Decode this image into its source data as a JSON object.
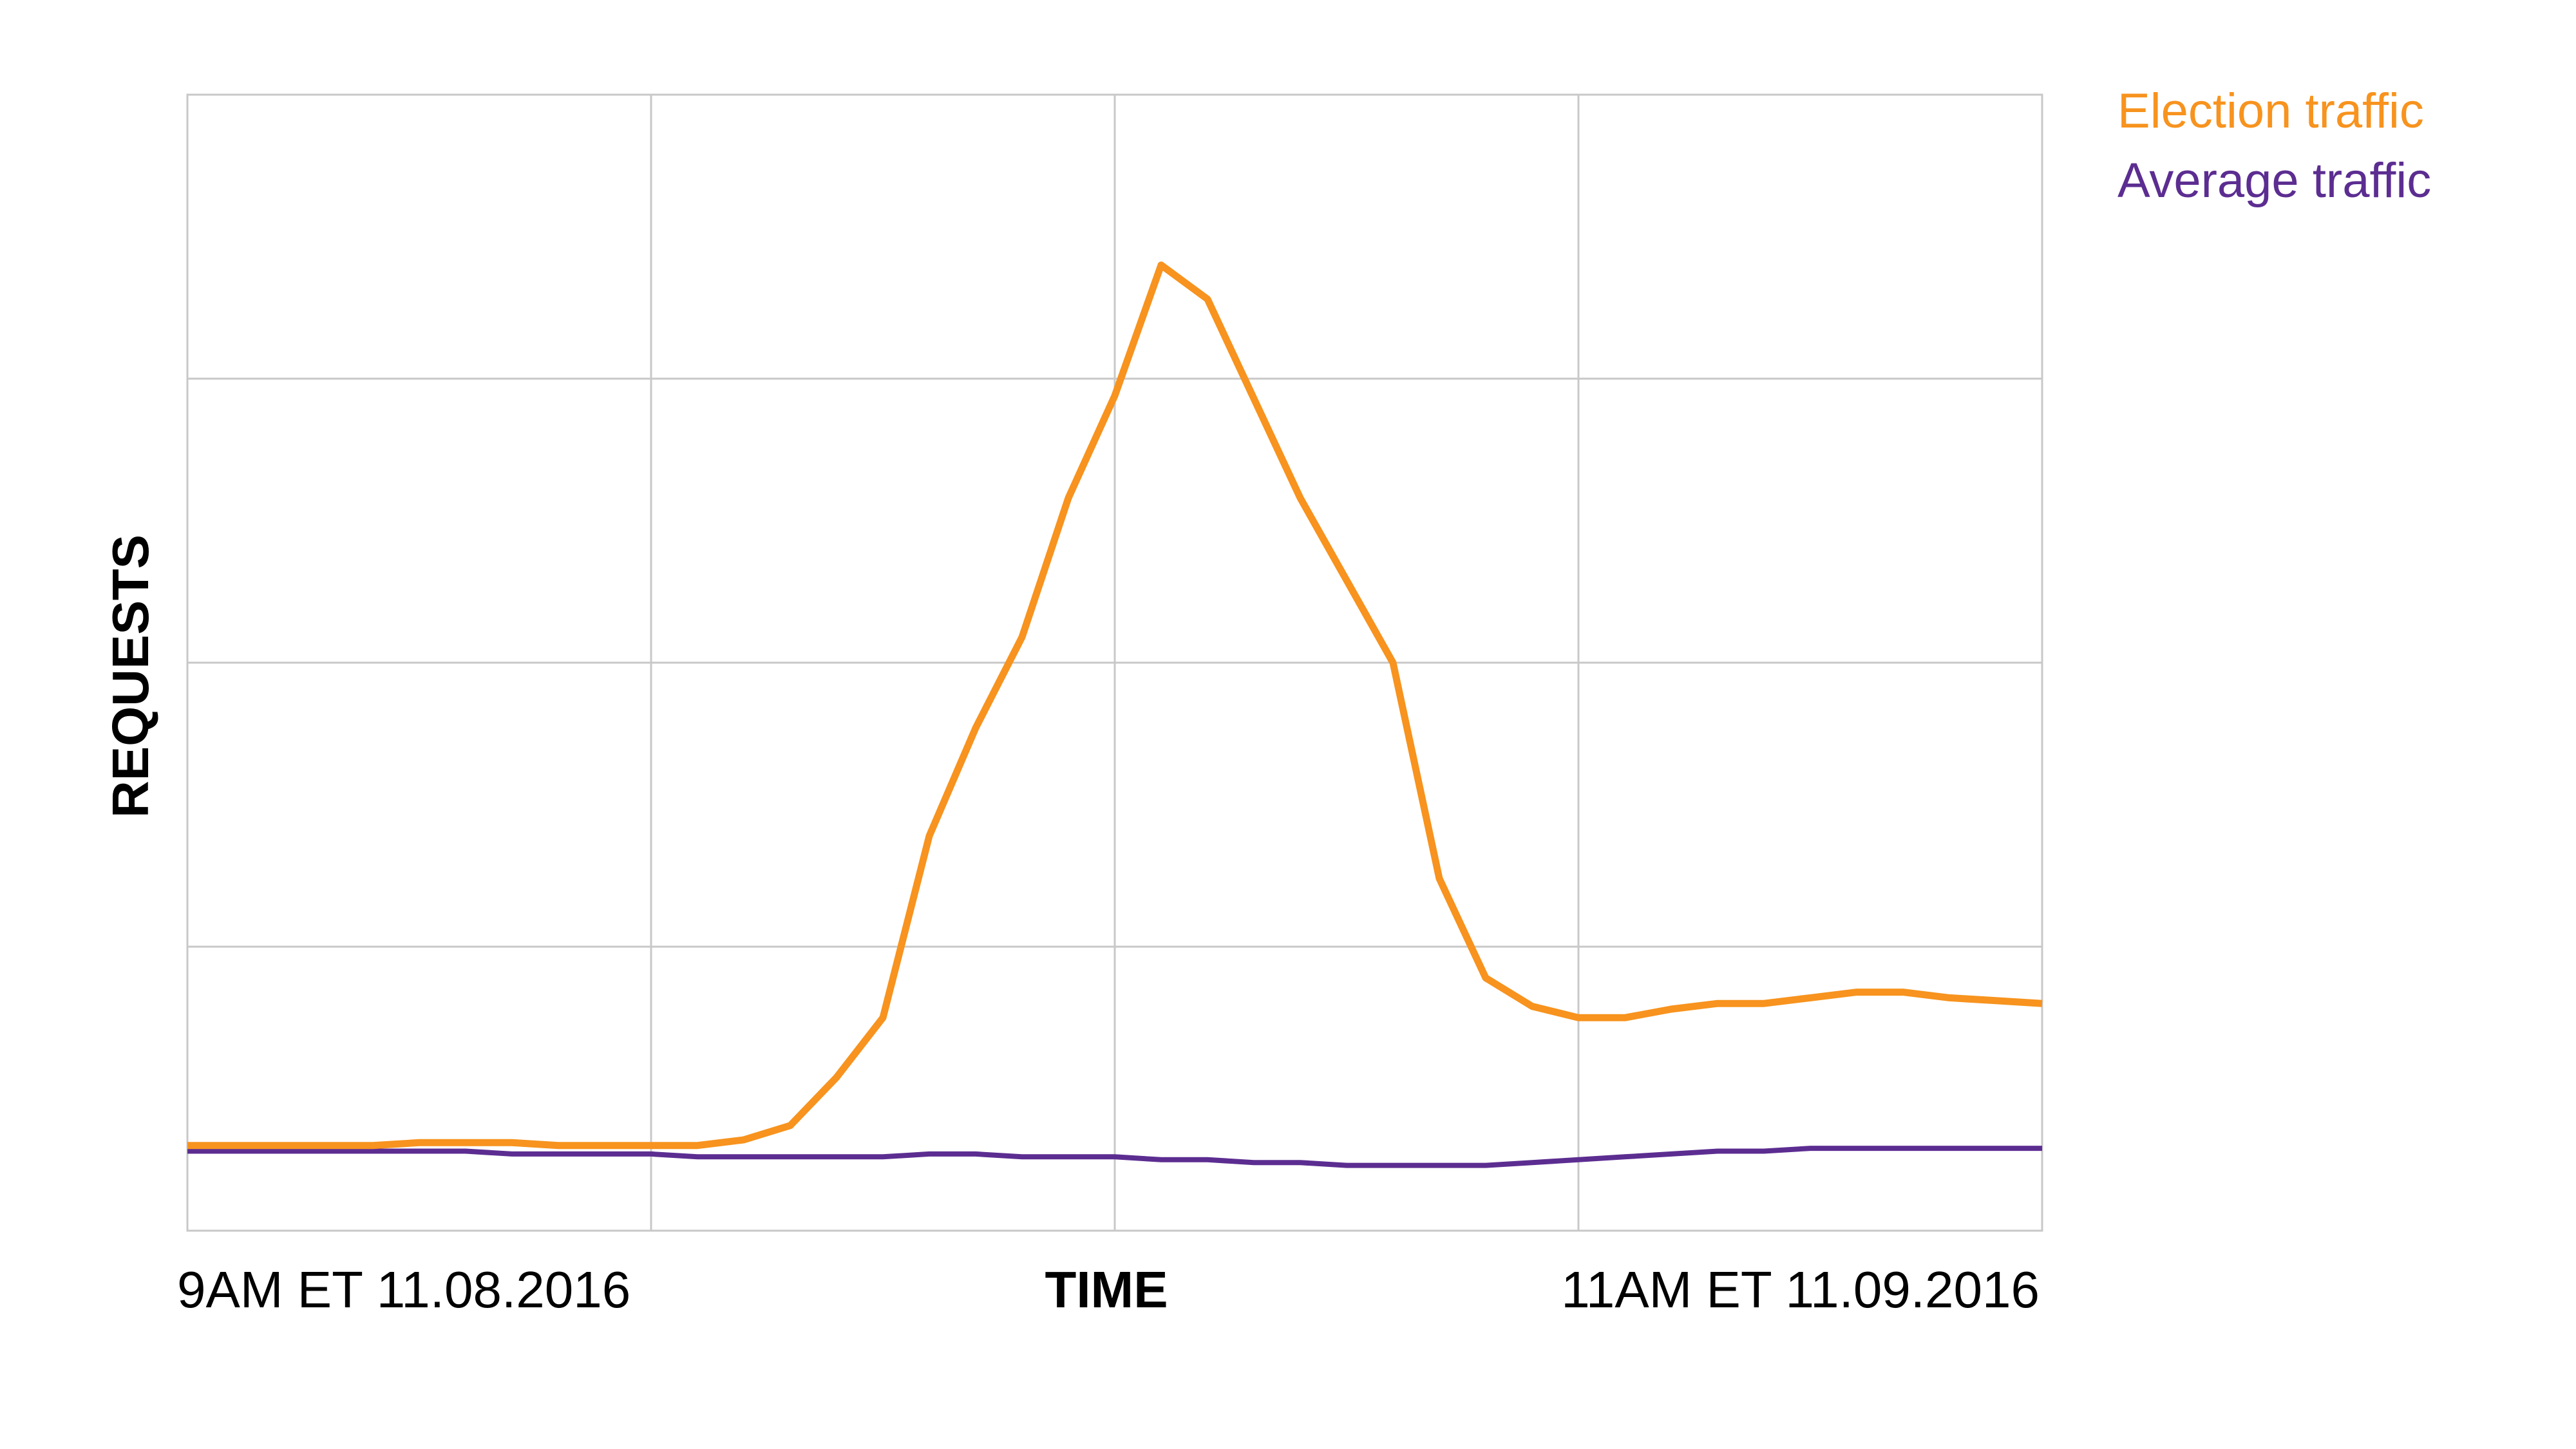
{
  "chart_data": {
    "type": "line",
    "axis_labels": {
      "x": "TIME",
      "y": "REQUESTS"
    },
    "categories": [
      "9AM ET 11.08.2016",
      null,
      null,
      null,
      null,
      null,
      null,
      null,
      null,
      null,
      null,
      null,
      null,
      null,
      null,
      null,
      null,
      null,
      null,
      null,
      null,
      null,
      null,
      null,
      null,
      null,
      null,
      null,
      null,
      null,
      null,
      null,
      null,
      null,
      null,
      null,
      null,
      null,
      null,
      null,
      "11AM ET 11.09.2016"
    ],
    "series": [
      {
        "name": "Election traffic",
        "color": "#f7931e",
        "values": [
          0.3,
          0.3,
          0.3,
          0.3,
          0.3,
          0.31,
          0.31,
          0.31,
          0.3,
          0.3,
          0.3,
          0.3,
          0.32,
          0.37,
          0.54,
          0.75,
          1.39,
          1.77,
          2.09,
          2.58,
          2.94,
          3.4,
          3.28,
          2.93,
          2.58,
          2.29,
          2.0,
          1.24,
          0.89,
          0.79,
          0.75,
          0.75,
          0.78,
          0.8,
          0.8,
          0.82,
          0.84,
          0.84,
          0.82,
          0.81,
          0.8
        ]
      },
      {
        "name": "Average traffic",
        "color": "#5c2d91",
        "values": [
          0.28,
          0.28,
          0.28,
          0.28,
          0.28,
          0.28,
          0.28,
          0.27,
          0.27,
          0.27,
          0.27,
          0.26,
          0.26,
          0.26,
          0.26,
          0.26,
          0.27,
          0.27,
          0.26,
          0.26,
          0.26,
          0.25,
          0.25,
          0.24,
          0.24,
          0.23,
          0.23,
          0.23,
          0.23,
          0.24,
          0.25,
          0.26,
          0.27,
          0.28,
          0.28,
          0.29,
          0.29,
          0.29,
          0.29,
          0.29,
          0.29
        ]
      }
    ],
    "ylim": [
      0,
      4
    ],
    "yticks": [
      1,
      2,
      3
    ],
    "grid": true
  }
}
